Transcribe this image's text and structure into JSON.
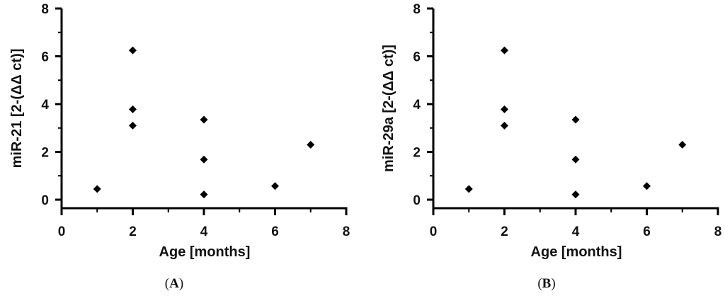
{
  "chart_data": [
    {
      "type": "scatter",
      "panel_label": "A",
      "xlabel": "Age [months]",
      "ylabel": "miR-21 [2-(ΔΔ ct)]",
      "xlim": [
        0,
        8
      ],
      "ylim": [
        0,
        8
      ],
      "xticks": [
        "0",
        "2",
        "4",
        "6",
        "8"
      ],
      "yticks": [
        "0",
        "2",
        "4",
        "6",
        "8"
      ],
      "grid": false,
      "marker": "diamond",
      "color": "#000000",
      "points": [
        {
          "x": 1,
          "y": 0.45
        },
        {
          "x": 2,
          "y": 6.25
        },
        {
          "x": 2,
          "y": 3.78
        },
        {
          "x": 2,
          "y": 3.1
        },
        {
          "x": 4,
          "y": 3.35
        },
        {
          "x": 4,
          "y": 1.68
        },
        {
          "x": 4,
          "y": 0.22
        },
        {
          "x": 6,
          "y": 0.57
        },
        {
          "x": 7,
          "y": 2.3
        }
      ]
    },
    {
      "type": "scatter",
      "panel_label": "B",
      "xlabel": "Age [months]",
      "ylabel": "miR-29a [2-(ΔΔ ct)]",
      "xlim": [
        0,
        8
      ],
      "ylim": [
        0,
        8
      ],
      "xticks": [
        "0",
        "2",
        "4",
        "6",
        "8"
      ],
      "yticks": [
        "0",
        "2",
        "4",
        "6",
        "8"
      ],
      "grid": false,
      "marker": "diamond",
      "color": "#000000",
      "points": [
        {
          "x": 1,
          "y": 0.45
        },
        {
          "x": 2,
          "y": 6.25
        },
        {
          "x": 2,
          "y": 3.78
        },
        {
          "x": 2,
          "y": 3.1
        },
        {
          "x": 4,
          "y": 3.35
        },
        {
          "x": 4,
          "y": 1.68
        },
        {
          "x": 4,
          "y": 0.22
        },
        {
          "x": 6,
          "y": 0.57
        },
        {
          "x": 7,
          "y": 2.3
        }
      ]
    }
  ]
}
